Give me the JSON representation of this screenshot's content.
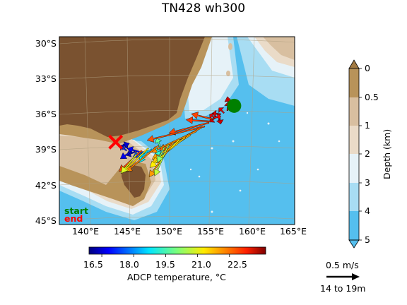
{
  "title": "TN428 wh300",
  "map": {
    "lon_range": [
      137,
      165
    ],
    "lat_range": [
      -45.0,
      -29.5
    ],
    "lat_ticks": [
      "30°S",
      "33°S",
      "36°S",
      "39°S",
      "42°S",
      "45°S"
    ],
    "lon_ticks": [
      "140°E",
      "145°E",
      "150°E",
      "155°E",
      "160°E",
      "165°E"
    ],
    "colors": {
      "land": "#7a5230",
      "shelf": "#b8935a",
      "depth_0_5": "#d8bfa0",
      "depth_1_2": "#eadbc8",
      "depth_2_3": "#e6f2f8",
      "depth_3_4": "#a8ddf3",
      "depth_4_5": "#55bfee"
    }
  },
  "legend": {
    "start": "start",
    "end": "end",
    "start_color": "#008000",
    "end_color": "#ff0000"
  },
  "temperature_colorbar": {
    "label": "ADCP temperature, °C",
    "ticks": [
      "16.5",
      "18.0",
      "19.5",
      "21.0",
      "22.5"
    ],
    "range": [
      15.9,
      24.2
    ]
  },
  "depth_colorbar": {
    "label": "Depth (km)",
    "ticks": [
      "0",
      "0.5",
      "1",
      "2",
      "3",
      "4",
      "5"
    ]
  },
  "reference_arrow": {
    "speed_label": "0.5 m/s",
    "depth_label": "14 to 19m"
  },
  "chart_data": {
    "type": "quiver-map",
    "title": "TN428 wh300",
    "start": {
      "lon": 157.8,
      "lat": -35.2
    },
    "end": {
      "lon": 143.7,
      "lat": -38.2
    },
    "vectors_description_units": "lon/lat position, u/v in m/s, temperature in °C",
    "vectors": [
      {
        "lon": 157.2,
        "lat": -35.3,
        "u": -0.1,
        "v": 0.6,
        "t": 23.6
      },
      {
        "lon": 157.0,
        "lat": -35.6,
        "u": 0.05,
        "v": 0.5,
        "t": 23.6
      },
      {
        "lon": 156.6,
        "lat": -35.8,
        "u": -0.3,
        "v": 0.3,
        "t": 23.5
      },
      {
        "lon": 156.2,
        "lat": -35.9,
        "u": -0.5,
        "v": 0.05,
        "t": 23.5
      },
      {
        "lon": 156.0,
        "lat": -36.0,
        "u": 0.1,
        "v": -0.5,
        "t": 23.6
      },
      {
        "lon": 155.7,
        "lat": -36.1,
        "u": -0.4,
        "v": -0.3,
        "t": 23.6
      },
      {
        "lon": 155.5,
        "lat": -36.2,
        "u": -0.3,
        "v": 0.2,
        "t": 23.4
      },
      {
        "lon": 155.4,
        "lat": -36.2,
        "u": 0.4,
        "v": 0.1,
        "t": 23.2
      },
      {
        "lon": 155.2,
        "lat": -36.3,
        "u": -1.2,
        "v": 0.3,
        "t": 22.6
      },
      {
        "lon": 155.0,
        "lat": -36.5,
        "u": -1.4,
        "v": 0.1,
        "t": 22.7
      },
      {
        "lon": 154.8,
        "lat": -36.6,
        "u": -2.3,
        "v": -0.6,
        "t": 22.6
      },
      {
        "lon": 154.3,
        "lat": -36.9,
        "u": -3.3,
        "v": -0.8,
        "t": 22.5
      },
      {
        "lon": 153.9,
        "lat": -37.0,
        "u": -2.4,
        "v": -1.3,
        "t": 22.3
      },
      {
        "lon": 153.3,
        "lat": -37.3,
        "u": -2.6,
        "v": -1.2,
        "t": 22.0
      },
      {
        "lon": 152.6,
        "lat": -37.6,
        "u": -2.2,
        "v": -1.4,
        "t": 21.8
      },
      {
        "lon": 152.0,
        "lat": -37.8,
        "u": -1.9,
        "v": -1.5,
        "t": 21.5
      },
      {
        "lon": 151.3,
        "lat": -38.0,
        "u": -1.7,
        "v": -1.6,
        "t": 21.2
      },
      {
        "lon": 150.6,
        "lat": -38.2,
        "u": -1.4,
        "v": -2.0,
        "t": 21.9
      },
      {
        "lon": 150.0,
        "lat": -38.4,
        "u": -0.8,
        "v": -1.8,
        "t": 20.6
      },
      {
        "lon": 149.5,
        "lat": -38.6,
        "u": -0.4,
        "v": -0.9,
        "t": 20.2
      },
      {
        "lon": 149.0,
        "lat": -38.6,
        "u": -0.2,
        "v": 0.5,
        "t": 19.8
      },
      {
        "lon": 148.5,
        "lat": -38.7,
        "u": 0.2,
        "v": -0.4,
        "t": 19.4
      },
      {
        "lon": 148.0,
        "lat": -38.8,
        "u": -0.8,
        "v": -0.5,
        "t": 18.6
      },
      {
        "lon": 147.5,
        "lat": -38.9,
        "u": -0.5,
        "v": -0.7,
        "t": 18.9
      },
      {
        "lon": 147.0,
        "lat": -39.0,
        "u": -0.6,
        "v": -0.3,
        "t": 17.6
      },
      {
        "lon": 146.5,
        "lat": -39.0,
        "u": -0.7,
        "v": 0.2,
        "t": 16.9
      },
      {
        "lon": 146.0,
        "lat": -39.0,
        "u": -0.5,
        "v": -0.2,
        "t": 16.4
      },
      {
        "lon": 145.5,
        "lat": -39.0,
        "u": -0.6,
        "v": -0.4,
        "t": 16.8
      },
      {
        "lon": 145.0,
        "lat": -38.9,
        "u": -0.4,
        "v": 0.3,
        "t": 17.1
      },
      {
        "lon": 144.5,
        "lat": -38.8,
        "u": 0.3,
        "v": 0.3,
        "t": 17.3
      },
      {
        "lon": 144.1,
        "lat": -38.6,
        "u": 0.6,
        "v": 0.2,
        "t": 16.6
      },
      {
        "lon": 148.8,
        "lat": -38.5,
        "u": -1.9,
        "v": -1.5,
        "t": 22.1
      },
      {
        "lon": 147.6,
        "lat": -38.7,
        "u": -1.5,
        "v": -1.4,
        "t": 21.3
      },
      {
        "lon": 146.8,
        "lat": -38.9,
        "u": -1.3,
        "v": -1.2,
        "t": 22.6
      },
      {
        "lon": 146.2,
        "lat": -39.2,
        "u": -0.9,
        "v": -1.1,
        "t": 20.8
      }
    ]
  }
}
